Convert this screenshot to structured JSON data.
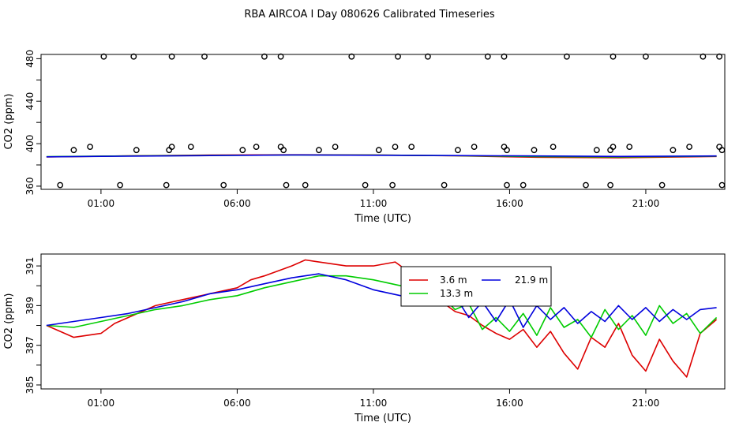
{
  "title": "RBA AIRCOA I  Day 080626  Calibrated Timeseries",
  "colors": {
    "3.6 m": "#dd0000",
    "13.3 m": "#00cc00",
    "21.9 m": "#0000dd",
    "axis": "#000000"
  },
  "chart_data": [
    {
      "type": "scatter",
      "xlabel": "Time (UTC)",
      "ylabel": "CO2 (ppm)",
      "xlim": [
        -1.2,
        23.9
      ],
      "ylim": [
        357,
        484
      ],
      "xticks": [
        1,
        6,
        11,
        16,
        21
      ],
      "xtick_labels": [
        "01:00",
        "06:00",
        "11:00",
        "16:00",
        "21:00"
      ],
      "yticks": [
        360,
        400,
        440,
        480
      ],
      "ytick_labels": [
        "360",
        "400",
        "440",
        "480"
      ],
      "grid": false,
      "points": {
        "x": [
          1.1,
          2.2,
          3.6,
          4.8,
          7.0,
          7.6,
          10.2,
          11.9,
          13.0,
          15.2,
          15.8,
          18.1,
          19.8,
          21.0,
          23.1,
          23.7,
          0.0,
          0.6,
          2.3,
          3.5,
          3.6,
          4.3,
          6.2,
          6.7,
          7.6,
          7.7,
          9.0,
          9.6,
          11.2,
          11.8,
          12.4,
          14.1,
          14.7,
          15.8,
          15.9,
          16.9,
          17.6,
          19.2,
          19.7,
          19.8,
          20.4,
          22.0,
          22.6,
          23.7,
          23.8,
          -0.5,
          1.7,
          3.4,
          5.5,
          7.8,
          8.5,
          10.7,
          11.7,
          13.6,
          15.9,
          16.5,
          18.8,
          19.7,
          21.6,
          23.8
        ],
        "y": [
          482,
          482,
          482,
          482,
          482,
          482,
          482,
          482,
          482,
          482,
          482,
          482,
          482,
          482,
          482,
          482,
          394,
          397,
          394,
          394,
          397,
          397,
          394,
          397,
          397,
          394,
          394,
          397,
          394,
          397,
          397,
          394,
          397,
          397,
          394,
          394,
          397,
          394,
          394,
          397,
          397,
          394,
          397,
          397,
          394,
          361,
          361,
          361,
          361,
          361,
          361,
          361,
          361,
          361,
          361,
          361,
          361,
          361,
          361,
          361
        ]
      },
      "series": [
        {
          "name": "3.6 m",
          "x": [
            -1,
            2,
            5,
            8,
            11,
            14,
            17,
            20,
            23.6
          ],
          "y": [
            387.5,
            388.5,
            389.2,
            389.5,
            389.4,
            388.6,
            387.2,
            386.8,
            388.0
          ]
        },
        {
          "name": "13.3 m",
          "x": [
            -1,
            2,
            5,
            8,
            11,
            14,
            17,
            20,
            23.6
          ],
          "y": [
            387.8,
            388.4,
            388.9,
            389.3,
            389.2,
            388.7,
            387.8,
            387.5,
            388.2
          ]
        },
        {
          "name": "21.9 m",
          "x": [
            -1,
            2,
            5,
            8,
            11,
            14,
            17,
            20,
            23.6
          ],
          "y": [
            387.6,
            388.3,
            388.8,
            389.4,
            389.1,
            388.8,
            388.4,
            388.0,
            388.4
          ]
        }
      ]
    },
    {
      "type": "line",
      "xlabel": "Time (UTC)",
      "ylabel": "CO2 (ppm)",
      "xlim": [
        -1.2,
        23.9
      ],
      "ylim": [
        384.8,
        391.6
      ],
      "xticks": [
        1,
        6,
        11,
        16,
        21
      ],
      "xtick_labels": [
        "01:00",
        "06:00",
        "11:00",
        "16:00",
        "21:00"
      ],
      "yticks": [
        385,
        387,
        389,
        391
      ],
      "ytick_labels": [
        "385",
        "387",
        "389",
        "391"
      ],
      "grid": false,
      "legend": {
        "position": "top-right-inset",
        "entries": [
          "3.6 m",
          "21.9 m",
          "13.3 m"
        ]
      },
      "series": [
        {
          "name": "3.6 m",
          "x": [
            -1,
            0,
            1,
            1.5,
            2,
            3,
            4,
            5,
            6,
            6.5,
            7,
            8,
            8.5,
            9,
            10,
            11,
            11.8,
            12.5,
            13,
            13.5,
            14,
            14.5,
            15,
            15.5,
            16,
            16.5,
            17,
            17.5,
            18,
            18.5,
            19,
            19.5,
            20,
            20.5,
            21,
            21.5,
            22,
            22.5,
            23,
            23.6
          ],
          "y": [
            388.0,
            387.4,
            387.6,
            388.1,
            388.4,
            389.0,
            389.3,
            389.6,
            389.9,
            390.3,
            390.5,
            391.0,
            391.3,
            391.2,
            391.0,
            391.0,
            391.2,
            390.5,
            389.5,
            389.2,
            388.7,
            388.5,
            388.0,
            387.6,
            387.3,
            387.8,
            386.9,
            387.7,
            386.6,
            385.8,
            387.4,
            386.9,
            388.1,
            386.5,
            385.7,
            387.3,
            386.2,
            385.4,
            387.6,
            388.3
          ]
        },
        {
          "name": "13.3 m",
          "x": [
            -1,
            0,
            1,
            2,
            3,
            4,
            5,
            6,
            7,
            8,
            9,
            10,
            11,
            12,
            13,
            13.5,
            14,
            14.5,
            15,
            15.5,
            16,
            16.5,
            17,
            17.5,
            18,
            18.5,
            19,
            19.5,
            20,
            20.5,
            21,
            21.5,
            22,
            22.5,
            23,
            23.6
          ],
          "y": [
            388.0,
            387.9,
            388.2,
            388.5,
            388.8,
            389.0,
            389.3,
            389.5,
            389.9,
            390.2,
            390.5,
            390.5,
            390.3,
            390.0,
            389.8,
            389.5,
            388.8,
            389.1,
            387.8,
            388.4,
            387.7,
            388.6,
            387.5,
            388.9,
            387.9,
            388.3,
            387.4,
            388.8,
            387.8,
            388.5,
            387.5,
            389.0,
            388.1,
            388.6,
            387.6,
            388.4
          ]
        },
        {
          "name": "21.9 m",
          "x": [
            -1,
            0,
            1,
            2,
            3,
            4,
            5,
            6,
            7,
            8,
            9,
            10,
            11,
            12,
            13,
            13.5,
            14,
            14.5,
            15,
            15.5,
            16,
            16.5,
            17,
            17.5,
            18,
            18.5,
            19,
            19.5,
            20,
            20.5,
            21,
            21.5,
            22,
            22.5,
            23,
            23.6
          ],
          "y": [
            388.0,
            388.2,
            388.4,
            388.6,
            388.9,
            389.2,
            389.6,
            389.8,
            390.1,
            390.4,
            390.6,
            390.3,
            389.8,
            389.5,
            389.4,
            389.2,
            389.5,
            388.4,
            389.2,
            388.2,
            389.3,
            387.9,
            389.0,
            388.3,
            388.9,
            388.1,
            388.7,
            388.2,
            389.0,
            388.3,
            388.9,
            388.2,
            388.8,
            388.3,
            388.8,
            388.9
          ]
        }
      ]
    }
  ]
}
